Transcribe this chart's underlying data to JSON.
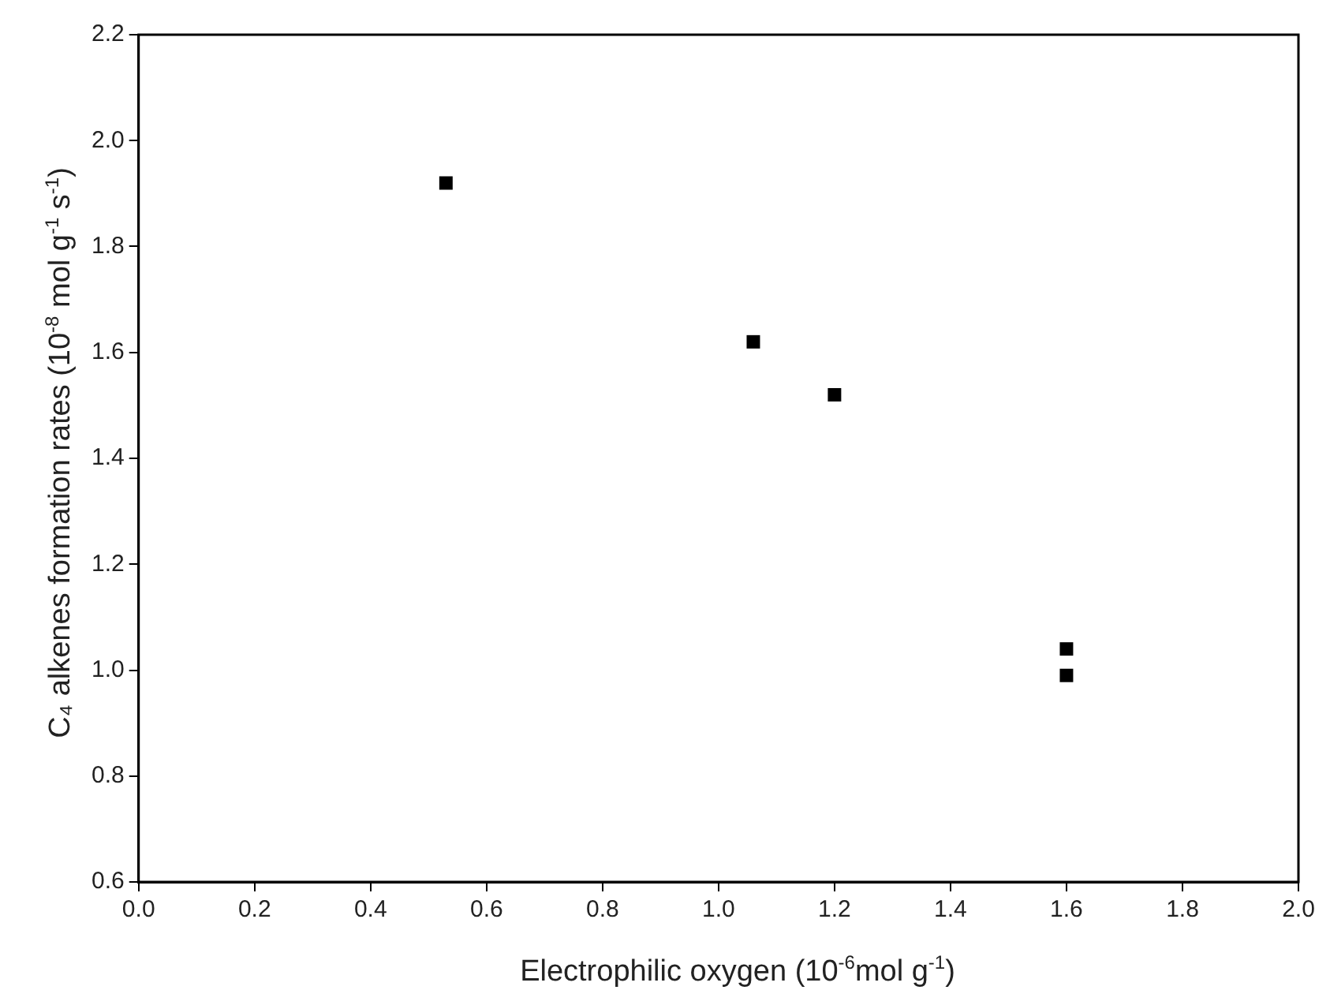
{
  "chart_data": {
    "type": "scatter",
    "xlabel": "Electrophilic oxygen (10$^{-6}$mol g$^{-1}$)",
    "ylabel": "C₄ alkenes formation rates (10$^{-8}$ mol g$^{-1}$ s$^{-1}$)",
    "x": [
      0.53,
      1.06,
      1.2,
      1.6,
      1.6
    ],
    "series": [
      {
        "color": "#000000",
        "values": [
          1.92,
          1.62,
          1.52,
          1.04,
          0.99
        ]
      }
    ],
    "xlim": [
      0,
      2
    ],
    "xticks": [
      {
        "value": 0,
        "label": "0.0"
      },
      0.2,
      0.4,
      0.6,
      0.8,
      {
        "value": 1,
        "label": "1.0"
      },
      1.2,
      1.4,
      1.6,
      1.8,
      {
        "value": 2,
        "label": "2.0"
      }
    ],
    "ylim": [
      0.6,
      2.2
    ],
    "yticks": [
      0.6,
      0.8,
      {
        "value": 1,
        "label": "1.0"
      },
      1.2,
      1.4,
      1.6,
      1.8,
      {
        "value": 2,
        "label": "2.0"
      },
      2.2
    ],
    "grid": false,
    "legend": false,
    "marker": "square"
  }
}
